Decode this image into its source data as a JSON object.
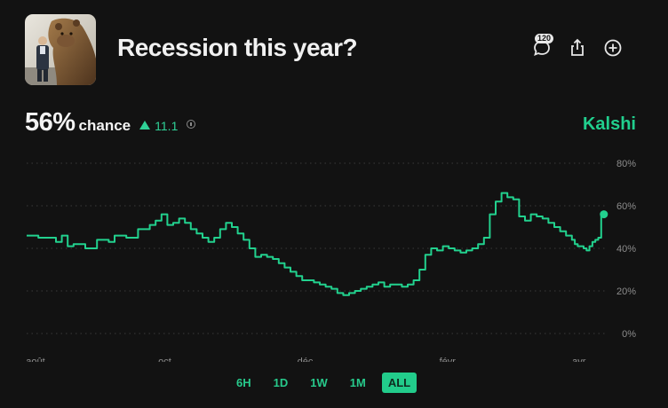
{
  "market": {
    "title": "Recession this year?",
    "thumbnail_icon": "bear-statue-photo"
  },
  "header_actions": {
    "comments_count": "120",
    "comments_icon": "comment-icon",
    "share_icon": "share-icon",
    "add_icon": "plus-circle-icon"
  },
  "odds": {
    "percent": "56%",
    "chance_label": "chance",
    "change": "11.1",
    "direction": "up"
  },
  "brand": {
    "name": "Kalshi",
    "color": "#21cf8e"
  },
  "tabs": [
    {
      "label": "6H",
      "active": false
    },
    {
      "label": "1D",
      "active": false
    },
    {
      "label": "1W",
      "active": false
    },
    {
      "label": "1M",
      "active": false
    },
    {
      "label": "ALL",
      "active": true
    }
  ],
  "chart_data": {
    "type": "line",
    "x_tick_labels": [
      "août",
      "oct.",
      "déc.",
      "févr.",
      "avr."
    ],
    "y_tick_labels": [
      "80%",
      "60%",
      "40%",
      "20%",
      "0%"
    ],
    "y_ticks": [
      80,
      60,
      40,
      20,
      0
    ],
    "ylim": [
      0,
      80
    ],
    "x_range": [
      0,
      100
    ],
    "grid": "horizontal-dotted",
    "color": "#22d18e",
    "series": [
      {
        "x": [
          0,
          2,
          3,
          5,
          6,
          7,
          8,
          10,
          12,
          14,
          15,
          17,
          19,
          21,
          22,
          23,
          24,
          25,
          26,
          27,
          28,
          29,
          30,
          31,
          32,
          33,
          34,
          35,
          36,
          37,
          38,
          39,
          40,
          41,
          42,
          43,
          44,
          45,
          46,
          47,
          48,
          49,
          50,
          51,
          52,
          53,
          54,
          55,
          56,
          57,
          58,
          59,
          60,
          61,
          62,
          63,
          64,
          65,
          66,
          67,
          68,
          69,
          70,
          71,
          72,
          73,
          74,
          75,
          76,
          77,
          78,
          79,
          80,
          81,
          82,
          83,
          84,
          85,
          86,
          87,
          88,
          89,
          90,
          91,
          92,
          93,
          93.5,
          94,
          95,
          95.5,
          96,
          96.5,
          97,
          97.5,
          98
        ],
        "values": [
          46,
          45,
          45,
          43,
          46,
          41,
          42,
          40,
          44,
          43,
          46,
          45,
          49,
          51,
          53,
          56,
          51,
          52,
          54,
          52,
          49,
          47,
          45,
          43,
          45,
          49,
          52,
          50,
          47,
          44,
          40,
          36,
          37,
          36,
          35,
          33,
          31,
          29,
          27,
          25,
          25,
          24,
          23,
          22,
          21,
          19,
          18,
          19,
          20,
          21,
          22,
          23,
          24,
          22,
          23,
          23,
          22,
          23,
          25,
          30,
          37,
          40,
          39,
          41,
          40,
          39,
          38,
          39,
          40,
          42,
          45,
          56,
          62,
          66,
          64,
          63,
          55,
          53,
          56,
          55,
          54,
          52,
          50,
          48,
          46,
          44,
          42,
          41,
          40,
          39,
          41,
          43,
          44,
          45,
          56
        ]
      }
    ]
  }
}
